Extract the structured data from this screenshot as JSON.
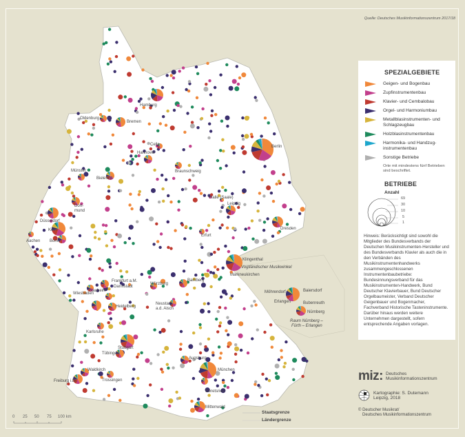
{
  "source": "Quelle: Deutsches Musikinformationszentrum 2017/18",
  "legend": {
    "title": "SPEZIALGEBIETE",
    "categories": [
      {
        "label": "Geigen- und Bogenbau",
        "color": "#f0883a"
      },
      {
        "label": "Zupfinstrumentenbau",
        "color": "#c23f8c"
      },
      {
        "label": "Klavier- und Cembalobau",
        "color": "#bf3a30"
      },
      {
        "label": "Orgel- und Harmoniumbau",
        "color": "#3b2f6e"
      },
      {
        "label": "Metallblasinstrumenten- und Schlagzeugbau",
        "color": "#d6b43c"
      },
      {
        "label": "Holzblasinstrumentenbau",
        "color": "#1e8a5c"
      },
      {
        "label": "Harmonika- und Handzug-instrumentenbau",
        "color": "#1ca6cc"
      },
      {
        "label": "Sonstige Betriebe",
        "color": "#b0b0b0"
      }
    ],
    "labeled_note": "Orte mit mindestens fünf Betrieben sind beschriftet.",
    "size_title": "BETRIEBE",
    "size_subtitle": "Anzahl",
    "size_values": [
      "69",
      "30",
      "10",
      "5",
      "1"
    ],
    "hint": "Hinweis: Berücksichtigt sind sowohl die Mitglieder des Bundesverbands der Deutschen Musikinstrumenten-Hersteller und des Bundesverbands Klavier als auch die in den Verbänden des Musikinstrumentenhandwerks zusammengeschlossenen Instrumentenbaubetriebe: Bundesinnungsverband für das Musikinstrumenten-Handwerk, Bund Deutscher Klavierbauer, Bund Deutscher Orgelbaumeister, Verband Deutscher Geigenbauer und Bogenmacher, Fachverband Historische Tasteninstrumente. Darüber hinaus werden weitere Unternehmen dargestellt, sofern entsprechende Angaben vorlagen."
  },
  "cities": [
    {
      "name": "Hamburg"
    },
    {
      "name": "Oldenburg"
    },
    {
      "name": "Bremen"
    },
    {
      "name": "Berlin"
    },
    {
      "name": "Celle"
    },
    {
      "name": "Hannover"
    },
    {
      "name": "Braunschweig"
    },
    {
      "name": "Münster"
    },
    {
      "name": "Bielefeld"
    },
    {
      "name": "Halle (Saale)"
    },
    {
      "name": "Leipzig"
    },
    {
      "name": "Dort-"
    },
    {
      "name": "Düsseldorf"
    },
    {
      "name": "Köln"
    },
    {
      "name": "Aachen"
    },
    {
      "name": "Bonn"
    },
    {
      "name": "Dresden"
    },
    {
      "name": "Erfurt"
    },
    {
      "name": "Klingenthal"
    },
    {
      "name": "Vogtländischer Musikwinkel"
    },
    {
      "name": "Markneukirchen"
    },
    {
      "name": "Frankfurt a.M."
    },
    {
      "name": "Wiesbaden"
    },
    {
      "name": "Darmstadt"
    },
    {
      "name": "Nauheim"
    },
    {
      "name": "Würzburg"
    },
    {
      "name": "Bamberg"
    },
    {
      "name": "Neustadt"
    },
    {
      "name": "Heidelberg"
    },
    {
      "name": "Karlsruhe"
    },
    {
      "name": "Stuttgart"
    },
    {
      "name": "Tübingen"
    },
    {
      "name": "Augsburg"
    },
    {
      "name": "München"
    },
    {
      "name": "Geretsried"
    },
    {
      "name": "Mittenwald"
    },
    {
      "name": "Freiburg i.Br."
    },
    {
      "name": "Waldkirch"
    },
    {
      "name": "Trossingen"
    },
    {
      "name": "Möhrendorf"
    },
    {
      "name": "Baiersdorf"
    },
    {
      "name": "Erlangen"
    },
    {
      "name": "Bubenreuth"
    },
    {
      "name": "Nürnberg"
    },
    {
      "name": "Raum Nürnberg –"
    },
    {
      "name": "mund"
    },
    {
      "name": "a.d. Aisch"
    },
    {
      "name": "Fürth – Erlangen"
    }
  ],
  "scale": {
    "ticks": [
      "0",
      "25",
      "50",
      "75",
      "100 km"
    ]
  },
  "borders": {
    "state": "Staatsgrenze",
    "land": "Ländergrenze"
  },
  "credits": {
    "logo_text": "miz:",
    "org_line1": "Deutsches",
    "org_line2": "Musikinformationszentrum",
    "cartography": "Kartographie:  S. Dutemann",
    "place_year": "Leipzig, 2018",
    "copyright_line1": "© Deutscher Musikrat/",
    "copyright_line2": "Deutsches Musikinformationszentrum"
  }
}
